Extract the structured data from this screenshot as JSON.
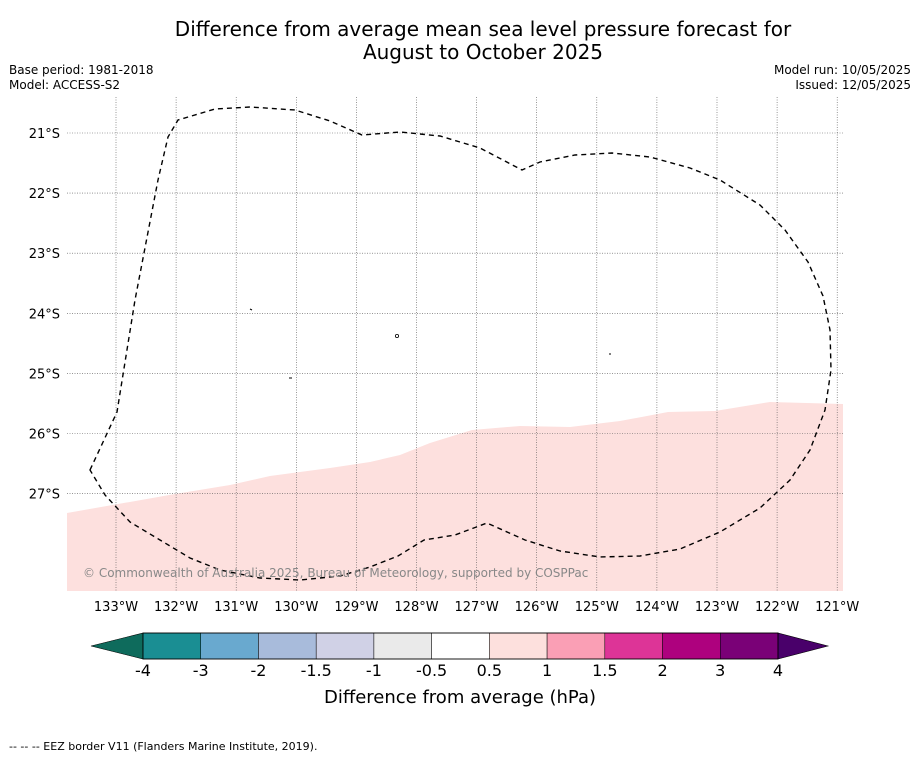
{
  "title_line1": "Difference from average mean sea level pressure forecast for",
  "title_line2": "August to October 2025",
  "base_period": "Base period: 1981-2018",
  "model": "Model: ACCESS-S2",
  "model_run": "Model run: 10/05/2025",
  "issued": "Issued: 12/05/2025",
  "copyright": "© Commonwealth of Australia 2025, Bureau of Meteorology, supported by COSPPac",
  "map": {
    "lon_labels": [
      "133°W",
      "132°W",
      "131°W",
      "130°W",
      "129°W",
      "128°W",
      "127°W",
      "126°W",
      "125°W",
      "124°W",
      "123°W",
      "122°W",
      "121°W"
    ],
    "lat_labels": [
      "21°S",
      "22°S",
      "23°S",
      "24°S",
      "25°S",
      "26°S",
      "27°S"
    ],
    "shaded_category": "0.5 to 1",
    "shaded_color": "#fde0de",
    "eez_line_color": "#000000"
  },
  "colorbar": {
    "label": "Difference from average (hPa)",
    "ticks": [
      "-4",
      "-3",
      "-2",
      "-1.5",
      "-1",
      "-0.5",
      "0.5",
      "1",
      "1.5",
      "2",
      "3",
      "4"
    ],
    "colors": [
      "#1a8e93",
      "#69a9cf",
      "#a8bbdb",
      "#d0d1e6",
      "#eaeaea",
      "#ffffff",
      "#fde0dd",
      "#fa9fb5",
      "#dd3497",
      "#ae017e",
      "#7a0177"
    ],
    "under_color": "#0e6b5c",
    "over_color": "#49006a"
  },
  "footer": "--  --  -- EEZ border V11 (Flanders Marine Institute, 2019)."
}
